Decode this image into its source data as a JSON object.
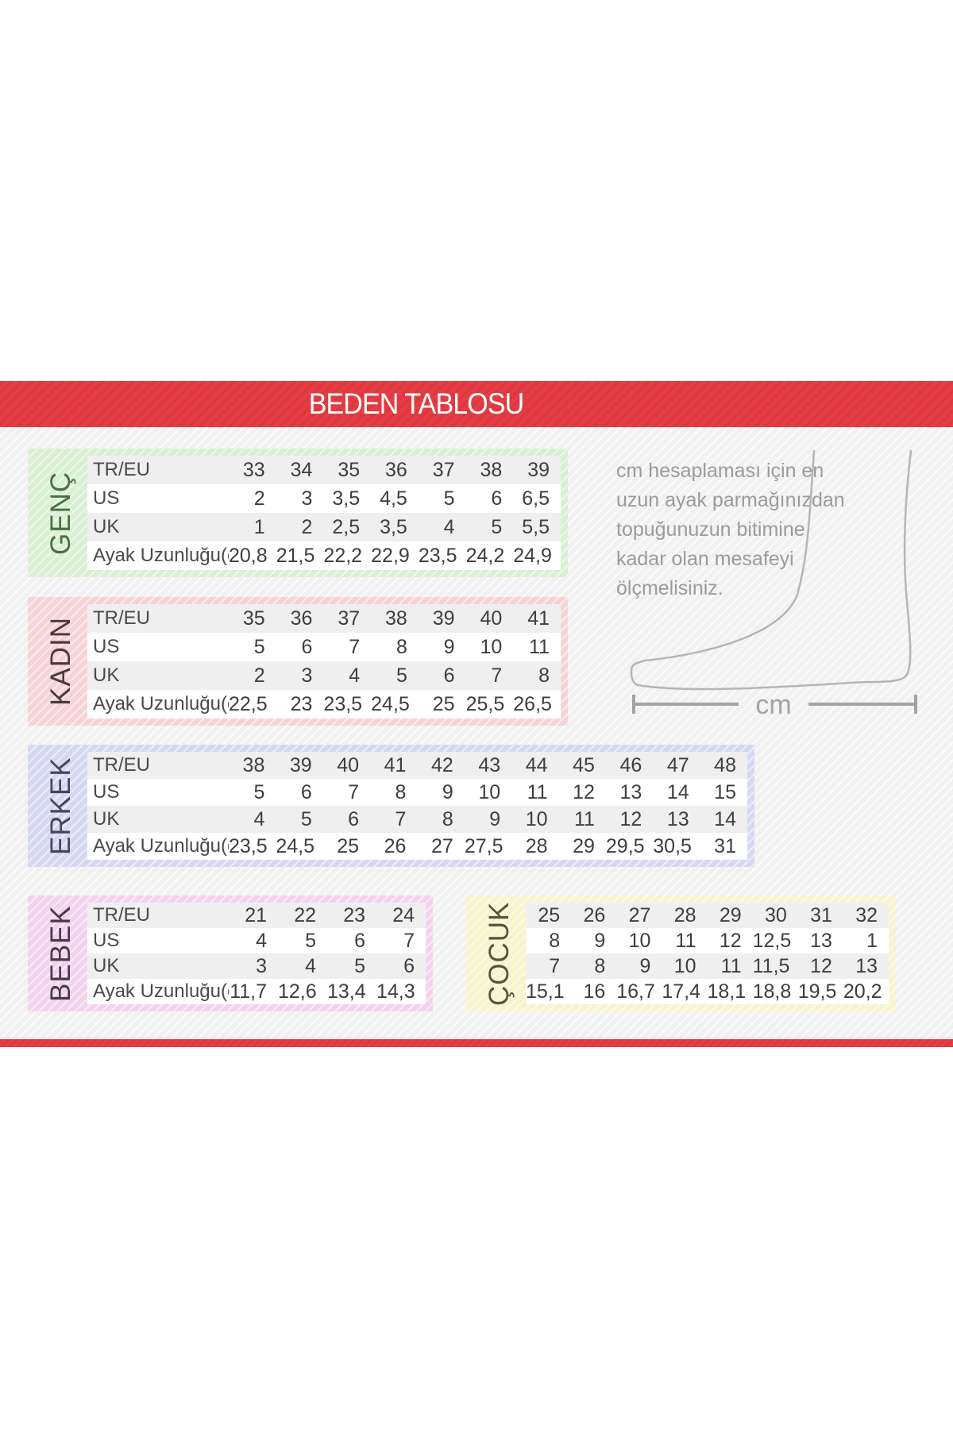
{
  "banner": {
    "title": "BEDEN TABLOSU"
  },
  "note": {
    "text": "cm hesaplaması için en\nuzun ayak parmağınızdan\ntopuğunuzun bitimine\nkadar olan mesafeyi\nölçmelisiniz."
  },
  "diagram": {
    "unit_label": "cm"
  },
  "colors": {
    "banner_red": "#e83c44",
    "table_text": "#3e3e3e",
    "note_gray": "#9b9b9b",
    "foot_outline": "#b5b5b5"
  },
  "tables": [
    {
      "id": "genc",
      "label": "GENÇ",
      "frame_color": "#d9f0d2",
      "label_color": "#47713f",
      "row_headers": [
        "TR/EU",
        "US",
        "UK",
        "Ayak Uzunluğu(cm)"
      ],
      "rows": [
        [
          "33",
          "34",
          "35",
          "36",
          "37",
          "38",
          "39"
        ],
        [
          "2",
          "3",
          "3,5",
          "4,5",
          "5",
          "6",
          "6,5"
        ],
        [
          "1",
          "2",
          "2,5",
          "3,5",
          "4",
          "5",
          "5,5"
        ],
        [
          "20,8",
          "21,5",
          "22,2",
          "22,9",
          "23,5",
          "24,2",
          "24,9"
        ]
      ]
    },
    {
      "id": "kadin",
      "label": "KADIN",
      "frame_color": "#f6d3d7",
      "label_color": "#4a393b",
      "row_headers": [
        "TR/EU",
        "US",
        "UK",
        "Ayak Uzunluğu(cm)"
      ],
      "rows": [
        [
          "35",
          "36",
          "37",
          "38",
          "39",
          "40",
          "41"
        ],
        [
          "5",
          "6",
          "7",
          "8",
          "9",
          "10",
          "11"
        ],
        [
          "2",
          "3",
          "4",
          "5",
          "6",
          "7",
          "8"
        ],
        [
          "22,5",
          "23",
          "23,5",
          "24,5",
          "25",
          "25,5",
          "26,5"
        ]
      ]
    },
    {
      "id": "erkek",
      "label": "ERKEK",
      "frame_color": "#d6d7f3",
      "label_color": "#46465a",
      "row_headers": [
        "TR/EU",
        "US",
        "UK",
        "Ayak Uzunluğu(cm)"
      ],
      "rows": [
        [
          "38",
          "39",
          "40",
          "41",
          "42",
          "43",
          "44",
          "45",
          "46",
          "47",
          "48"
        ],
        [
          "5",
          "6",
          "7",
          "8",
          "9",
          "10",
          "11",
          "12",
          "13",
          "14",
          "15"
        ],
        [
          "4",
          "5",
          "6",
          "7",
          "8",
          "9",
          "10",
          "11",
          "12",
          "13",
          "14"
        ],
        [
          "23,5",
          "24,5",
          "25",
          "26",
          "27",
          "27,5",
          "28",
          "29",
          "29,5",
          "30,5",
          "31"
        ]
      ]
    },
    {
      "id": "bebek",
      "label": "BEBEK",
      "frame_color": "#f3d2ee",
      "label_color": "#4a3949",
      "row_headers": [
        "TR/EU",
        "US",
        "UK",
        "Ayak Uzunluğu(cm)"
      ],
      "rows": [
        [
          "21",
          "22",
          "23",
          "24"
        ],
        [
          "4",
          "5",
          "6",
          "7"
        ],
        [
          "3",
          "4",
          "5",
          "6"
        ],
        [
          "11,7",
          "12,6",
          "13,4",
          "14,3"
        ]
      ]
    },
    {
      "id": "cocuk",
      "label": "ÇOCUK",
      "frame_color": "#f7f3cc",
      "label_color": "#56553b",
      "row_headers": null,
      "rows": [
        [
          "25",
          "26",
          "27",
          "28",
          "29",
          "30",
          "31",
          "32"
        ],
        [
          "8",
          "9",
          "10",
          "11",
          "12",
          "12,5",
          "13",
          "1"
        ],
        [
          "7",
          "8",
          "9",
          "10",
          "11",
          "11,5",
          "12",
          "13"
        ],
        [
          "15,1",
          "16",
          "16,7",
          "17,4",
          "18,1",
          "18,8",
          "19,5",
          "20,2"
        ]
      ]
    }
  ]
}
